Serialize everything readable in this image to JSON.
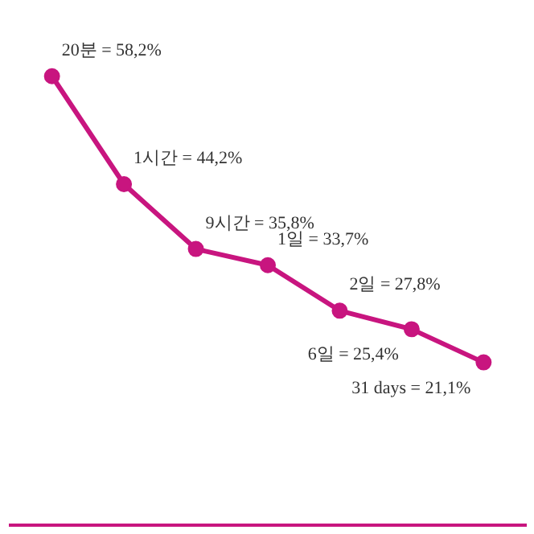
{
  "chart_data": {
    "type": "line",
    "categories": [
      null,
      null,
      null,
      null,
      null,
      null,
      null
    ],
    "series": [
      {
        "color": "#c8157f",
        "values": [
          58.2,
          44.2,
          35.8,
          33.7,
          27.8,
          25.4,
          21.1
        ],
        "value_labels": [
          "20분 = 58,2%",
          "1시간 = 44,2%",
          "9시간 = 35,8%",
          "1일 = 33,7%",
          "2일 = 27,8%",
          "6일 = 25,4%",
          "31 days = 21,1%"
        ]
      }
    ],
    "marker": "circle",
    "grid": false,
    "tick_labels": false
  }
}
